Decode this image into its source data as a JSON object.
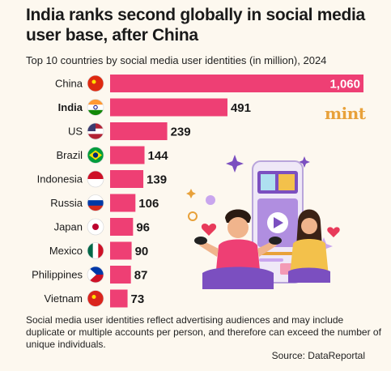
{
  "title": "India ranks second globally in social media user base, after China",
  "subtitle": "Top 10 countries by social media user identities (in million), 2024",
  "brand": "mint",
  "note": "Social media user identities reflect advertising audiences and may include duplicate or multiple accounts per person, and therefore can exceed the number of unique individuals.",
  "source": "Source: DataReportal",
  "colors": {
    "bar": "#ee3f74",
    "background": "#fdf8ef",
    "brand": "#e8a13a"
  },
  "chart_data": {
    "type": "bar",
    "orientation": "horizontal",
    "categories": [
      "China",
      "India",
      "US",
      "Brazil",
      "Indonesia",
      "Russia",
      "Japan",
      "Mexico",
      "Philippines",
      "Vietnam"
    ],
    "values": [
      1060,
      491,
      239,
      144,
      139,
      106,
      96,
      90,
      87,
      73
    ],
    "value_labels": [
      "1,060",
      "491",
      "239",
      "144",
      "139",
      "106",
      "96",
      "90",
      "87",
      "73"
    ],
    "highlight": "India",
    "xlim": [
      0,
      1060
    ],
    "grid": false,
    "legend": "none"
  }
}
